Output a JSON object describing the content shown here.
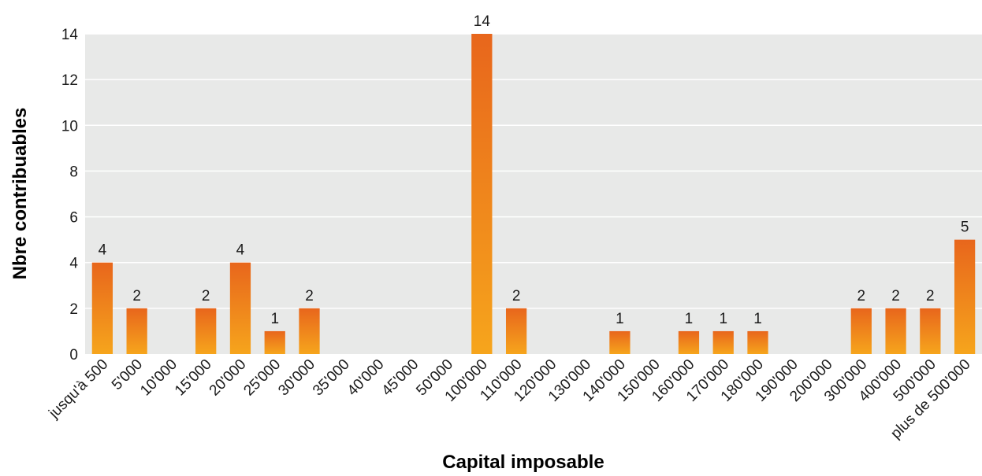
{
  "chart_data": {
    "type": "bar",
    "xlabel": "Capital imposable",
    "ylabel": "Nbre contribuables",
    "ylim": [
      0,
      14
    ],
    "yticks": [
      0,
      2,
      4,
      6,
      8,
      10,
      12,
      14
    ],
    "grid": true,
    "categories": [
      "jusqu'à 500",
      "5'000",
      "10'000",
      "15'000",
      "20'000",
      "25'000",
      "30'000",
      "35'000",
      "40'000",
      "45'000",
      "50'000",
      "100'000",
      "110'000",
      "120'000",
      "130'000",
      "140'000",
      "150'000",
      "160'000",
      "170'000",
      "180'000",
      "190'000",
      "200'000",
      "300'000",
      "400'000",
      "500'000",
      "plus de 500'000"
    ],
    "values": [
      4,
      2,
      0,
      2,
      4,
      1,
      2,
      0,
      0,
      0,
      0,
      14,
      2,
      0,
      0,
      1,
      0,
      1,
      1,
      1,
      0,
      0,
      2,
      2,
      2,
      5
    ],
    "colors": {
      "plot_background": "#e8e9e8",
      "gridline": "#ffffff",
      "bar_top": "#e8661c",
      "bar_bottom": "#f6a51c"
    }
  }
}
